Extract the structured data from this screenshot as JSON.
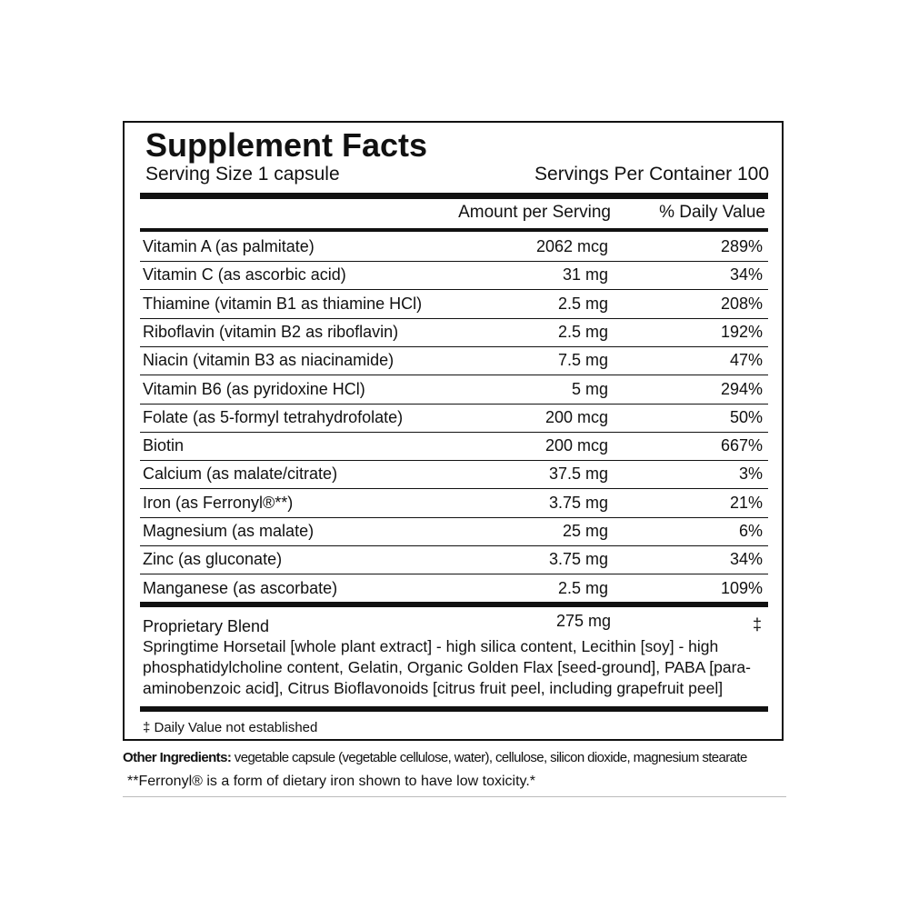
{
  "title": "Supplement Facts",
  "serving_size": "Serving Size 1 capsule",
  "servings_per_container": "Servings Per Container 100",
  "header": {
    "amount": "Amount per Serving",
    "daily_value": "% Daily Value"
  },
  "rows": [
    [
      "Vitamin A (as palmitate)",
      "2062 mcg",
      "289%"
    ],
    [
      "Vitamin C (as ascorbic acid)",
      "31 mg",
      "34%"
    ],
    [
      "Thiamine (vitamin B1 as thiamine HCl)",
      "2.5 mg",
      "208%"
    ],
    [
      "Riboflavin (vitamin B2 as riboflavin)",
      "2.5 mg",
      "192%"
    ],
    [
      "Niacin (vitamin B3 as niacinamide)",
      "7.5 mg",
      "47%"
    ],
    [
      "Vitamin B6 (as pyridoxine HCl)",
      "5 mg",
      "294%"
    ],
    [
      "Folate (as 5-formyl tetrahydrofolate)",
      "200 mcg",
      "50%"
    ],
    [
      "Biotin",
      "200 mcg",
      "667%"
    ],
    [
      "Calcium (as malate/citrate)",
      "37.5 mg",
      "3%"
    ],
    [
      "Iron (as Ferronyl®**)",
      "3.75 mg",
      "21%"
    ],
    [
      "Magnesium (as malate)",
      "25 mg",
      "6%"
    ],
    [
      "Zinc (as gluconate)",
      "3.75 mg",
      "34%"
    ],
    [
      "Manganese (as ascorbate)",
      "2.5 mg",
      "109%"
    ]
  ],
  "blend": {
    "name": "Proprietary Blend",
    "amount": "275 mg",
    "daily_value": "‡",
    "description": "Springtime Horsetail [whole plant extract] - high silica content, Lecithin [soy] - high phosphatidylcholine content, Gelatin, Organic Golden Flax [seed-ground], PABA [para-aminobenzoic acid], Citrus Bioflavonoids [citrus fruit peel, including grapefruit peel]"
  },
  "footnote": "‡ Daily Value not established",
  "other_ingredients": {
    "label": "Other Ingredients:",
    "text": "vegetable capsule (vegetable cellulose, water), cellulose, silicon dioxide, magnesium stearate"
  },
  "ferronyl_note": "**Ferronyl® is a form of dietary iron shown to have low toxicity.*"
}
